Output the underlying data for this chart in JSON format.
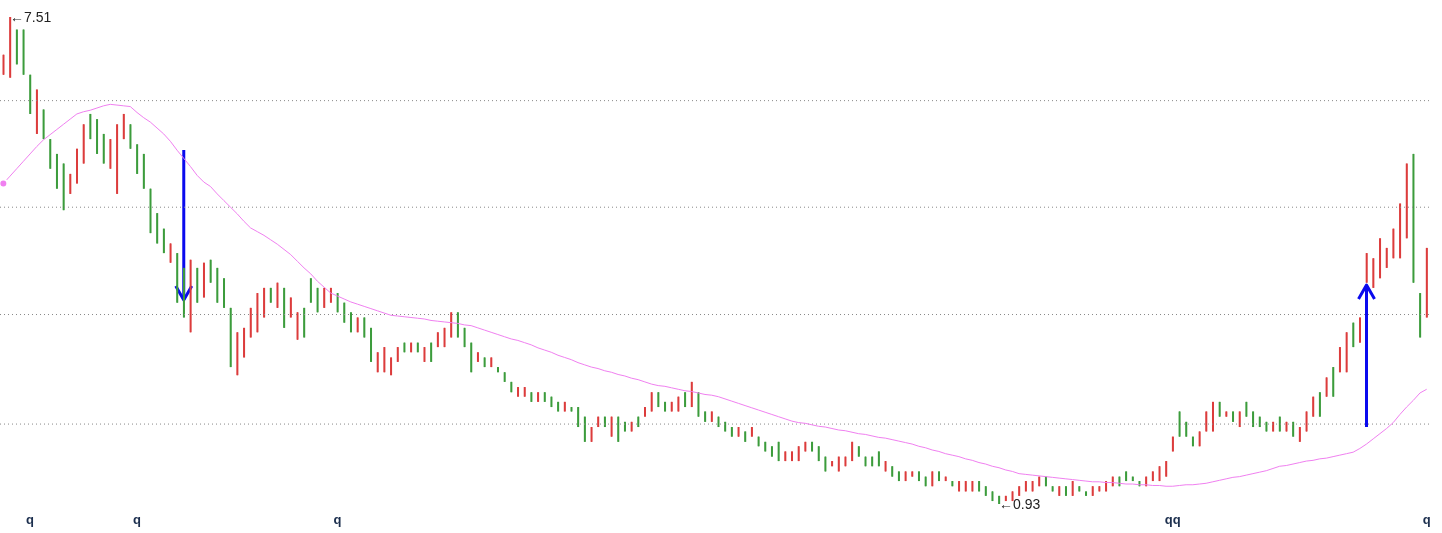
{
  "chart_data": {
    "type": "candlestick",
    "categories": [
      null,
      null,
      null,
      null,
      "q",
      null,
      null,
      null,
      null,
      null,
      null,
      null,
      null,
      null,
      null,
      null,
      null,
      null,
      null,
      null,
      "q",
      null,
      null,
      null,
      null,
      null,
      null,
      null,
      null,
      null,
      null,
      null,
      null,
      null,
      null,
      null,
      null,
      null,
      null,
      null,
      null,
      null,
      null,
      null,
      null,
      null,
      null,
      null,
      null,
      null,
      "q",
      null,
      null,
      null,
      null,
      null,
      null,
      null,
      null,
      null,
      null,
      null,
      null,
      null,
      null,
      null,
      null,
      null,
      null,
      null,
      null,
      null,
      null,
      null,
      null,
      null,
      null,
      null,
      null,
      null,
      null,
      null,
      null,
      null,
      null,
      null,
      null,
      null,
      null,
      null,
      null,
      null,
      null,
      null,
      null,
      null,
      null,
      null,
      null,
      null,
      null,
      null,
      null,
      null,
      null,
      null,
      null,
      null,
      null,
      null,
      null,
      null,
      null,
      null,
      null,
      null,
      null,
      null,
      null,
      null,
      null,
      null,
      null,
      null,
      null,
      null,
      null,
      null,
      null,
      null,
      null,
      null,
      null,
      null,
      null,
      null,
      null,
      null,
      null,
      null,
      null,
      null,
      null,
      null,
      null,
      null,
      null,
      null,
      null,
      null,
      null,
      null,
      null,
      null,
      null,
      null,
      null,
      null,
      null,
      null,
      null,
      null,
      null,
      null,
      null,
      null,
      null,
      null,
      null,
      null,
      null,
      null,
      null,
      null,
      null,
      "qq",
      null,
      null,
      null,
      null,
      null,
      null,
      null,
      null,
      null,
      null,
      null,
      null,
      null,
      null,
      null,
      null,
      null,
      null,
      null,
      null,
      null,
      null,
      null,
      null,
      null,
      null,
      null,
      null,
      null,
      null,
      null,
      null,
      null,
      null,
      null,
      null,
      null,
      "q"
    ],
    "ohlc": [
      [
        6.73,
        7.0,
        6.73,
        7.0
      ],
      [
        6.69,
        7.51,
        6.69,
        7.51
      ],
      [
        7.34,
        7.34,
        6.87,
        6.87
      ],
      [
        7.34,
        7.34,
        6.73,
        6.73
      ],
      [
        6.73,
        6.73,
        6.2,
        6.2
      ],
      [
        5.93,
        6.53,
        5.93,
        6.53
      ],
      [
        6.26,
        6.26,
        5.86,
        5.86
      ],
      [
        5.86,
        5.86,
        5.46,
        5.46
      ],
      [
        5.66,
        5.66,
        5.19,
        5.19
      ],
      [
        5.53,
        5.53,
        4.9,
        4.9
      ],
      [
        5.12,
        5.39,
        5.12,
        5.39
      ],
      [
        5.26,
        5.73,
        5.26,
        5.73
      ],
      [
        5.53,
        6.06,
        5.53,
        6.06
      ],
      [
        6.2,
        6.2,
        5.86,
        5.86
      ],
      [
        6.13,
        6.13,
        5.66,
        5.66
      ],
      [
        5.93,
        5.93,
        5.53,
        5.53
      ],
      [
        5.46,
        5.86,
        5.46,
        5.86
      ],
      [
        5.12,
        6.06,
        5.12,
        6.06
      ],
      [
        5.86,
        6.2,
        5.86,
        6.2
      ],
      [
        6.06,
        6.06,
        5.73,
        5.73
      ],
      [
        5.79,
        5.79,
        5.39,
        5.39
      ],
      [
        5.66,
        5.66,
        5.19,
        5.19
      ],
      [
        5.19,
        5.19,
        4.59,
        4.59
      ],
      [
        4.86,
        4.86,
        4.45,
        4.45
      ],
      [
        4.65,
        4.65,
        4.32,
        4.32
      ],
      [
        4.19,
        4.45,
        4.19,
        4.45
      ],
      [
        4.32,
        4.32,
        3.65,
        3.65
      ],
      [
        4.12,
        4.12,
        3.45,
        3.45
      ],
      [
        3.25,
        4.23,
        3.25,
        4.23
      ],
      [
        4.12,
        4.12,
        3.65,
        3.65
      ],
      [
        3.72,
        4.19,
        3.72,
        4.19
      ],
      [
        4.23,
        4.23,
        3.92,
        3.92
      ],
      [
        4.12,
        4.12,
        3.65,
        3.65
      ],
      [
        3.98,
        3.98,
        3.58,
        3.58
      ],
      [
        3.58,
        3.58,
        2.78,
        2.78
      ],
      [
        2.67,
        3.25,
        2.67,
        3.25
      ],
      [
        2.91,
        3.31,
        2.91,
        3.31
      ],
      [
        3.18,
        3.58,
        3.18,
        3.58
      ],
      [
        3.25,
        3.78,
        3.25,
        3.78
      ],
      [
        3.45,
        3.85,
        3.45,
        3.85
      ],
      [
        3.85,
        3.85,
        3.65,
        3.65
      ],
      [
        3.58,
        3.92,
        3.58,
        3.92
      ],
      [
        3.85,
        3.85,
        3.31,
        3.31
      ],
      [
        3.45,
        3.72,
        3.45,
        3.72
      ],
      [
        3.15,
        3.52,
        3.15,
        3.52
      ],
      [
        3.58,
        3.58,
        3.18,
        3.18
      ],
      [
        3.98,
        3.98,
        3.65,
        3.65
      ],
      [
        3.85,
        3.85,
        3.52,
        3.52
      ],
      [
        3.58,
        3.85,
        3.58,
        3.85
      ],
      [
        3.65,
        3.85,
        3.65,
        3.85
      ],
      [
        3.78,
        3.78,
        3.52,
        3.52
      ],
      [
        3.65,
        3.65,
        3.38,
        3.38
      ],
      [
        3.52,
        3.52,
        3.25,
        3.25
      ],
      [
        3.25,
        3.45,
        3.25,
        3.45
      ],
      [
        3.45,
        3.45,
        3.18,
        3.18
      ],
      [
        3.31,
        3.31,
        2.85,
        2.85
      ],
      [
        2.71,
        2.98,
        2.71,
        2.98
      ],
      [
        2.71,
        3.05,
        2.71,
        3.05
      ],
      [
        2.67,
        2.91,
        2.67,
        2.91
      ],
      [
        2.85,
        3.05,
        2.85,
        3.05
      ],
      [
        3.11,
        3.11,
        2.98,
        2.98
      ],
      [
        2.98,
        3.11,
        2.98,
        3.11
      ],
      [
        3.11,
        3.11,
        2.98,
        2.98
      ],
      [
        2.85,
        3.05,
        2.85,
        3.05
      ],
      [
        3.11,
        3.11,
        2.85,
        2.85
      ],
      [
        3.05,
        3.25,
        3.05,
        3.25
      ],
      [
        3.05,
        3.31,
        3.05,
        3.31
      ],
      [
        3.18,
        3.52,
        3.18,
        3.52
      ],
      [
        3.52,
        3.52,
        3.18,
        3.18
      ],
      [
        3.31,
        3.31,
        3.05,
        3.05
      ],
      [
        3.11,
        3.11,
        2.71,
        2.71
      ],
      [
        2.85,
        2.98,
        2.85,
        2.98
      ],
      [
        2.91,
        2.91,
        2.78,
        2.78
      ],
      [
        2.78,
        2.91,
        2.78,
        2.91
      ],
      [
        2.78,
        2.78,
        2.71,
        2.71
      ],
      [
        2.71,
        2.71,
        2.58,
        2.58
      ],
      [
        2.58,
        2.58,
        2.44,
        2.44
      ],
      [
        2.38,
        2.51,
        2.38,
        2.51
      ],
      [
        2.38,
        2.51,
        2.38,
        2.51
      ],
      [
        2.44,
        2.44,
        2.31,
        2.31
      ],
      [
        2.31,
        2.44,
        2.31,
        2.44
      ],
      [
        2.44,
        2.44,
        2.31,
        2.31
      ],
      [
        2.38,
        2.38,
        2.24,
        2.24
      ],
      [
        2.31,
        2.31,
        2.18,
        2.18
      ],
      [
        2.18,
        2.31,
        2.18,
        2.31
      ],
      [
        2.24,
        2.24,
        2.18,
        2.18
      ],
      [
        2.24,
        2.24,
        1.97,
        1.97
      ],
      [
        2.11,
        2.11,
        1.77,
        1.77
      ],
      [
        1.77,
        1.97,
        1.77,
        1.97
      ],
      [
        1.97,
        2.11,
        1.97,
        2.11
      ],
      [
        2.11,
        2.11,
        1.97,
        1.97
      ],
      [
        1.84,
        2.11,
        1.84,
        2.11
      ],
      [
        2.11,
        2.11,
        1.77,
        1.77
      ],
      [
        2.04,
        2.04,
        1.91,
        1.91
      ],
      [
        1.91,
        2.04,
        1.91,
        2.04
      ],
      [
        2.11,
        2.11,
        1.97,
        1.97
      ],
      [
        2.11,
        2.24,
        2.11,
        2.24
      ],
      [
        2.18,
        2.44,
        2.18,
        2.44
      ],
      [
        2.44,
        2.44,
        2.24,
        2.24
      ],
      [
        2.31,
        2.31,
        2.18,
        2.18
      ],
      [
        2.18,
        2.31,
        2.18,
        2.31
      ],
      [
        2.18,
        2.38,
        2.18,
        2.38
      ],
      [
        2.44,
        2.44,
        2.24,
        2.24
      ],
      [
        2.24,
        2.58,
        2.24,
        2.58
      ],
      [
        2.44,
        2.44,
        2.11,
        2.11
      ],
      [
        2.18,
        2.18,
        2.04,
        2.04
      ],
      [
        2.04,
        2.18,
        2.04,
        2.18
      ],
      [
        2.11,
        2.11,
        1.97,
        1.97
      ],
      [
        2.04,
        2.04,
        1.91,
        1.91
      ],
      [
        1.97,
        1.97,
        1.84,
        1.84
      ],
      [
        1.84,
        1.97,
        1.84,
        1.97
      ],
      [
        1.91,
        1.91,
        1.77,
        1.77
      ],
      [
        1.84,
        1.97,
        1.84,
        1.97
      ],
      [
        1.84,
        1.84,
        1.71,
        1.71
      ],
      [
        1.77,
        1.77,
        1.64,
        1.64
      ],
      [
        1.71,
        1.71,
        1.57,
        1.57
      ],
      [
        1.77,
        1.77,
        1.51,
        1.51
      ],
      [
        1.51,
        1.64,
        1.51,
        1.64
      ],
      [
        1.51,
        1.64,
        1.51,
        1.64
      ],
      [
        1.51,
        1.71,
        1.51,
        1.71
      ],
      [
        1.64,
        1.77,
        1.64,
        1.77
      ],
      [
        1.77,
        1.77,
        1.64,
        1.64
      ],
      [
        1.71,
        1.71,
        1.51,
        1.51
      ],
      [
        1.57,
        1.57,
        1.37,
        1.37
      ],
      [
        1.44,
        1.51,
        1.44,
        1.51
      ],
      [
        1.37,
        1.57,
        1.37,
        1.57
      ],
      [
        1.44,
        1.57,
        1.44,
        1.57
      ],
      [
        1.51,
        1.77,
        1.51,
        1.77
      ],
      [
        1.71,
        1.71,
        1.57,
        1.57
      ],
      [
        1.57,
        1.57,
        1.44,
        1.44
      ],
      [
        1.57,
        1.57,
        1.44,
        1.44
      ],
      [
        1.64,
        1.64,
        1.44,
        1.44
      ],
      [
        1.37,
        1.51,
        1.37,
        1.51
      ],
      [
        1.44,
        1.44,
        1.3,
        1.3
      ],
      [
        1.37,
        1.37,
        1.24,
        1.24
      ],
      [
        1.24,
        1.37,
        1.24,
        1.37
      ],
      [
        1.3,
        1.37,
        1.3,
        1.37
      ],
      [
        1.37,
        1.37,
        1.24,
        1.24
      ],
      [
        1.3,
        1.3,
        1.17,
        1.17
      ],
      [
        1.17,
        1.37,
        1.17,
        1.37
      ],
      [
        1.37,
        1.37,
        1.24,
        1.24
      ],
      [
        1.24,
        1.3,
        1.24,
        1.3
      ],
      [
        1.24,
        1.24,
        1.17,
        1.17
      ],
      [
        1.1,
        1.24,
        1.1,
        1.24
      ],
      [
        1.1,
        1.24,
        1.1,
        1.24
      ],
      [
        1.1,
        1.24,
        1.1,
        1.24
      ],
      [
        1.24,
        1.24,
        1.1,
        1.1
      ],
      [
        1.17,
        1.17,
        1.04,
        1.04
      ],
      [
        1.1,
        1.1,
        0.97,
        0.97
      ],
      [
        1.04,
        1.04,
        0.93,
        0.93
      ],
      [
        0.97,
        1.04,
        0.97,
        1.04
      ],
      [
        0.97,
        1.1,
        0.97,
        1.1
      ],
      [
        1.04,
        1.17,
        1.04,
        1.17
      ],
      [
        1.1,
        1.24,
        1.1,
        1.24
      ],
      [
        1.1,
        1.24,
        1.1,
        1.24
      ],
      [
        1.17,
        1.3,
        1.17,
        1.3
      ],
      [
        1.3,
        1.3,
        1.17,
        1.17
      ],
      [
        1.17,
        1.17,
        1.1,
        1.1
      ],
      [
        1.04,
        1.17,
        1.04,
        1.17
      ],
      [
        1.17,
        1.17,
        1.04,
        1.04
      ],
      [
        1.04,
        1.24,
        1.04,
        1.24
      ],
      [
        1.17,
        1.17,
        1.1,
        1.1
      ],
      [
        1.1,
        1.1,
        1.04,
        1.04
      ],
      [
        1.04,
        1.17,
        1.04,
        1.17
      ],
      [
        1.1,
        1.17,
        1.1,
        1.17
      ],
      [
        1.1,
        1.24,
        1.1,
        1.24
      ],
      [
        1.17,
        1.3,
        1.17,
        1.3
      ],
      [
        1.3,
        1.3,
        1.17,
        1.17
      ],
      [
        1.37,
        1.37,
        1.24,
        1.24
      ],
      [
        1.3,
        1.3,
        1.24,
        1.24
      ],
      [
        1.24,
        1.24,
        1.17,
        1.17
      ],
      [
        1.17,
        1.3,
        1.17,
        1.3
      ],
      [
        1.24,
        1.37,
        1.24,
        1.37
      ],
      [
        1.24,
        1.44,
        1.24,
        1.44
      ],
      [
        1.3,
        1.51,
        1.3,
        1.51
      ],
      [
        1.64,
        1.84,
        1.64,
        1.84
      ],
      [
        2.18,
        2.18,
        1.84,
        1.84
      ],
      [
        2.04,
        2.04,
        1.84,
        1.84
      ],
      [
        1.84,
        1.84,
        1.71,
        1.71
      ],
      [
        1.71,
        1.91,
        1.71,
        1.91
      ],
      [
        1.91,
        2.18,
        1.91,
        2.18
      ],
      [
        1.91,
        2.31,
        1.91,
        2.31
      ],
      [
        2.31,
        2.31,
        2.11,
        2.11
      ],
      [
        2.11,
        2.18,
        2.11,
        2.18
      ],
      [
        2.18,
        2.18,
        2.04,
        2.04
      ],
      [
        1.97,
        2.18,
        1.97,
        2.18
      ],
      [
        2.31,
        2.31,
        2.11,
        2.11
      ],
      [
        2.18,
        2.18,
        1.97,
        1.97
      ],
      [
        2.11,
        2.11,
        1.97,
        1.97
      ],
      [
        2.04,
        2.04,
        1.91,
        1.91
      ],
      [
        1.91,
        2.04,
        1.91,
        2.04
      ],
      [
        2.11,
        2.11,
        1.91,
        1.91
      ],
      [
        1.91,
        2.04,
        1.91,
        2.04
      ],
      [
        2.04,
        2.04,
        1.84,
        1.84
      ],
      [
        1.77,
        1.97,
        1.77,
        1.97
      ],
      [
        1.91,
        2.18,
        1.91,
        2.18
      ],
      [
        2.11,
        2.38,
        2.11,
        2.38
      ],
      [
        2.44,
        2.44,
        2.11,
        2.11
      ],
      [
        2.38,
        2.64,
        2.38,
        2.64
      ],
      [
        2.78,
        2.78,
        2.38,
        2.38
      ],
      [
        2.71,
        3.05,
        2.71,
        3.05
      ],
      [
        2.71,
        3.25,
        2.71,
        3.25
      ],
      [
        3.38,
        3.38,
        3.05,
        3.05
      ],
      [
        3.11,
        3.45,
        3.11,
        3.45
      ],
      [
        3.92,
        4.32,
        3.92,
        4.32
      ],
      [
        3.85,
        4.25,
        3.85,
        4.25
      ],
      [
        3.98,
        4.52,
        3.98,
        4.52
      ],
      [
        4.12,
        4.39,
        4.12,
        4.39
      ],
      [
        4.25,
        4.65,
        4.25,
        4.65
      ],
      [
        4.25,
        4.99,
        4.25,
        4.99
      ],
      [
        4.52,
        5.53,
        4.52,
        5.53
      ],
      [
        5.66,
        5.66,
        3.92,
        3.92
      ],
      [
        3.78,
        3.78,
        3.18,
        3.18
      ],
      [
        3.45,
        4.39,
        3.45,
        4.39
      ]
    ],
    "colors": [
      "#dc3c3c",
      "#dc3c3c",
      "#3c9c3c",
      "#3c9c3c",
      "#3c9c3c",
      "#dc3c3c",
      "#3c9c3c",
      "#3c9c3c",
      "#3c9c3c",
      "#3c9c3c",
      "#dc3c3c",
      "#dc3c3c",
      "#dc3c3c",
      "#3c9c3c",
      "#3c9c3c",
      "#3c9c3c",
      "#dc3c3c",
      "#dc3c3c",
      "#dc3c3c",
      "#3c9c3c",
      "#3c9c3c",
      "#3c9c3c",
      "#3c9c3c",
      "#3c9c3c",
      "#3c9c3c",
      "#dc3c3c",
      "#3c9c3c",
      "#3c9c3c",
      "#dc3c3c",
      "#3c9c3c",
      "#dc3c3c",
      "#3c9c3c",
      "#3c9c3c",
      "#3c9c3c",
      "#3c9c3c",
      "#dc3c3c",
      "#dc3c3c",
      "#dc3c3c",
      "#dc3c3c",
      "#dc3c3c",
      "#3c9c3c",
      "#dc3c3c",
      "#3c9c3c",
      "#dc3c3c",
      "#dc3c3c",
      "#3c9c3c",
      "#3c9c3c",
      "#3c9c3c",
      "#dc3c3c",
      "#dc3c3c",
      "#3c9c3c",
      "#3c9c3c",
      "#3c9c3c",
      "#dc3c3c",
      "#3c9c3c",
      "#3c9c3c",
      "#dc3c3c",
      "#dc3c3c",
      "#dc3c3c",
      "#dc3c3c",
      "#3c9c3c",
      "#dc3c3c",
      "#3c9c3c",
      "#dc3c3c",
      "#3c9c3c",
      "#dc3c3c",
      "#dc3c3c",
      "#dc3c3c",
      "#3c9c3c",
      "#3c9c3c",
      "#3c9c3c",
      "#dc3c3c",
      "#3c9c3c",
      "#dc3c3c",
      "#3c9c3c",
      "#3c9c3c",
      "#3c9c3c",
      "#dc3c3c",
      "#dc3c3c",
      "#3c9c3c",
      "#dc3c3c",
      "#3c9c3c",
      "#3c9c3c",
      "#3c9c3c",
      "#dc3c3c",
      "#3c9c3c",
      "#3c9c3c",
      "#3c9c3c",
      "#dc3c3c",
      "#dc3c3c",
      "#3c9c3c",
      "#dc3c3c",
      "#3c9c3c",
      "#3c9c3c",
      "#dc3c3c",
      "#3c9c3c",
      "#dc3c3c",
      "#dc3c3c",
      "#3c9c3c",
      "#3c9c3c",
      "#dc3c3c",
      "#dc3c3c",
      "#3c9c3c",
      "#dc3c3c",
      "#3c9c3c",
      "#3c9c3c",
      "#dc3c3c",
      "#3c9c3c",
      "#3c9c3c",
      "#3c9c3c",
      "#dc3c3c",
      "#3c9c3c",
      "#dc3c3c",
      "#3c9c3c",
      "#3c9c3c",
      "#3c9c3c",
      "#3c9c3c",
      "#dc3c3c",
      "#dc3c3c",
      "#dc3c3c",
      "#dc3c3c",
      "#3c9c3c",
      "#3c9c3c",
      "#3c9c3c",
      "#dc3c3c",
      "#dc3c3c",
      "#dc3c3c",
      "#dc3c3c",
      "#3c9c3c",
      "#3c9c3c",
      "#3c9c3c",
      "#3c9c3c",
      "#dc3c3c",
      "#3c9c3c",
      "#3c9c3c",
      "#dc3c3c",
      "#dc3c3c",
      "#3c9c3c",
      "#3c9c3c",
      "#dc3c3c",
      "#3c9c3c",
      "#dc3c3c",
      "#3c9c3c",
      "#dc3c3c",
      "#dc3c3c",
      "#dc3c3c",
      "#3c9c3c",
      "#3c9c3c",
      "#3c9c3c",
      "#3c9c3c",
      "#dc3c3c",
      "#dc3c3c",
      "#dc3c3c",
      "#dc3c3c",
      "#dc3c3c",
      "#dc3c3c",
      "#3c9c3c",
      "#3c9c3c",
      "#dc3c3c",
      "#3c9c3c",
      "#dc3c3c",
      "#3c9c3c",
      "#3c9c3c",
      "#dc3c3c",
      "#dc3c3c",
      "#dc3c3c",
      "#dc3c3c",
      "#3c9c3c",
      "#3c9c3c",
      "#3c9c3c",
      "#3c9c3c",
      "#dc3c3c",
      "#dc3c3c",
      "#dc3c3c",
      "#dc3c3c",
      "#dc3c3c",
      "#3c9c3c",
      "#3c9c3c",
      "#3c9c3c",
      "#dc3c3c",
      "#dc3c3c",
      "#dc3c3c",
      "#3c9c3c",
      "#dc3c3c",
      "#3c9c3c",
      "#dc3c3c",
      "#3c9c3c",
      "#3c9c3c",
      "#3c9c3c",
      "#3c9c3c",
      "#dc3c3c",
      "#3c9c3c",
      "#dc3c3c",
      "#3c9c3c",
      "#dc3c3c",
      "#dc3c3c",
      "#dc3c3c",
      "#3c9c3c",
      "#dc3c3c",
      "#3c9c3c",
      "#dc3c3c",
      "#dc3c3c",
      "#3c9c3c",
      "#dc3c3c",
      "#dc3c3c",
      "#dc3c3c",
      "#dc3c3c",
      "#dc3c3c",
      "#dc3c3c",
      "#dc3c3c",
      "#dc3c3c",
      "#3c9c3c",
      "#3c9c3c",
      "#dc3c3c"
    ],
    "series": [
      {
        "type": "line",
        "color": "#f080f0",
        "values": [
          5.26,
          5.36,
          5.46,
          5.56,
          5.66,
          5.76,
          5.85,
          5.92,
          5.99,
          6.06,
          6.13,
          6.2,
          6.23,
          6.25,
          6.28,
          6.31,
          6.33,
          6.32,
          6.31,
          6.3,
          6.22,
          6.15,
          6.09,
          6.01,
          5.93,
          5.83,
          5.71,
          5.6,
          5.49,
          5.37,
          5.28,
          5.22,
          5.12,
          5.03,
          4.94,
          4.85,
          4.75,
          4.66,
          4.61,
          4.56,
          4.5,
          4.44,
          4.37,
          4.3,
          4.21,
          4.12,
          4.04,
          3.94,
          3.86,
          3.78,
          3.74,
          3.7,
          3.66,
          3.63,
          3.6,
          3.57,
          3.54,
          3.51,
          3.48,
          3.47,
          3.46,
          3.45,
          3.44,
          3.43,
          3.41,
          3.4,
          3.39,
          3.38,
          3.37,
          3.35,
          3.34,
          3.31,
          3.28,
          3.25,
          3.22,
          3.19,
          3.16,
          3.14,
          3.11,
          3.08,
          3.04,
          3.01,
          2.98,
          2.94,
          2.91,
          2.88,
          2.84,
          2.81,
          2.78,
          2.76,
          2.73,
          2.71,
          2.68,
          2.66,
          2.63,
          2.61,
          2.58,
          2.55,
          2.53,
          2.52,
          2.5,
          2.48,
          2.46,
          2.45,
          2.43,
          2.41,
          2.4,
          2.38,
          2.35,
          2.32,
          2.29,
          2.26,
          2.23,
          2.2,
          2.17,
          2.14,
          2.11,
          2.08,
          2.05,
          2.03,
          2.02,
          2.0,
          1.98,
          1.97,
          1.95,
          1.93,
          1.92,
          1.9,
          1.88,
          1.87,
          1.85,
          1.83,
          1.82,
          1.8,
          1.78,
          1.76,
          1.74,
          1.71,
          1.69,
          1.66,
          1.64,
          1.61,
          1.59,
          1.57,
          1.54,
          1.52,
          1.49,
          1.47,
          1.44,
          1.42,
          1.39,
          1.37,
          1.34,
          1.33,
          1.32,
          1.31,
          1.3,
          1.29,
          1.28,
          1.27,
          1.26,
          1.25,
          1.24,
          1.23,
          1.23,
          1.22,
          1.22,
          1.21,
          1.2,
          1.2,
          1.19,
          1.19,
          1.18,
          1.18,
          1.17,
          1.17,
          1.18,
          1.19,
          1.19,
          1.2,
          1.21,
          1.23,
          1.25,
          1.27,
          1.29,
          1.3,
          1.32,
          1.34,
          1.36,
          1.38,
          1.41,
          1.44,
          1.45,
          1.47,
          1.49,
          1.51,
          1.52,
          1.54,
          1.55,
          1.57,
          1.59,
          1.61,
          1.63,
          1.68,
          1.74,
          1.81,
          1.88,
          1.95,
          2.03,
          2.14,
          2.24,
          2.33,
          2.43,
          2.48
        ]
      }
    ],
    "yticks": [
      {
        "value": 2.01,
        "label": null
      },
      {
        "value": 3.49,
        "label": null
      },
      {
        "value": 4.94,
        "label": null
      },
      {
        "value": 6.38,
        "label": null
      }
    ],
    "grid": "y",
    "tick_labels": "x",
    "annotations": [
      "←7.51",
      "←0.93"
    ]
  }
}
